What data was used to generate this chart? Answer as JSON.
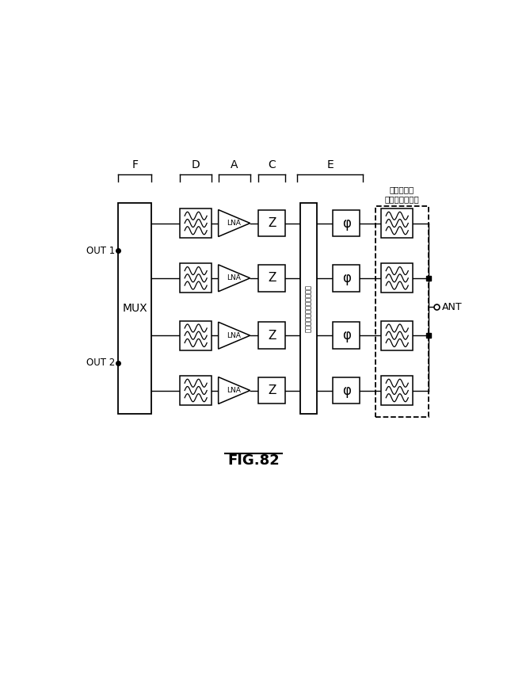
{
  "title": "FIG.82",
  "background_color": "#ffffff",
  "fig_width": 6.4,
  "fig_height": 8.83,
  "labels": {
    "F": "F",
    "D": "D",
    "A": "A",
    "C": "C",
    "E": "E",
    "filter_mux": "フィルタ／\nマルチプレクサ",
    "MUX": "MUX",
    "LNA": "LNA",
    "Z": "Z",
    "phi": "φ",
    "ANT": "ANT",
    "OUT1": "OUT 1",
    "OUT2": "OUT 2",
    "switching": "スイッチングネットワーク"
  },
  "colors": {
    "black": "#000000",
    "white": "#ffffff"
  }
}
